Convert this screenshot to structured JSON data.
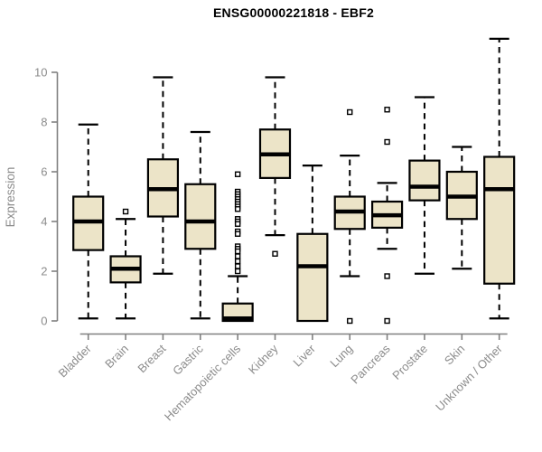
{
  "chart_data": {
    "type": "box",
    "title": "ENSG00000221818 - EBF2",
    "ylabel": "Expression",
    "xlabel": "",
    "ylim": [
      0,
      11.5
    ],
    "yticks": [
      0,
      2,
      4,
      6,
      8,
      10
    ],
    "grid": false,
    "legend": "none",
    "categories": [
      "Bladder",
      "Brain",
      "Breast",
      "Gastric",
      "Hematopoietic cells",
      "Kidney",
      "Liver",
      "Lung",
      "Pancreas",
      "Prostate",
      "Skin",
      "Unknown / Other"
    ],
    "series": [
      {
        "name": "Bladder",
        "whisker_low": 0.1,
        "q1": 2.85,
        "median": 4.0,
        "q3": 5.0,
        "whisker_high": 7.9,
        "outliers": []
      },
      {
        "name": "Brain",
        "whisker_low": 0.1,
        "q1": 1.55,
        "median": 2.1,
        "q3": 2.6,
        "whisker_high": 4.1,
        "outliers": [
          4.4
        ]
      },
      {
        "name": "Breast",
        "whisker_low": 1.9,
        "q1": 4.2,
        "median": 5.3,
        "q3": 6.5,
        "whisker_high": 9.8,
        "outliers": []
      },
      {
        "name": "Gastric",
        "whisker_low": 0.1,
        "q1": 2.9,
        "median": 4.0,
        "q3": 5.5,
        "whisker_high": 7.6,
        "outliers": []
      },
      {
        "name": "Hematopoietic cells",
        "whisker_low": 0.0,
        "q1": 0.0,
        "median": 0.1,
        "q3": 0.7,
        "whisker_high": 1.8,
        "outliers": [
          5.9,
          5.2,
          5.1,
          5.0,
          4.9,
          4.8,
          4.7,
          4.6,
          4.5,
          4.1,
          4.0,
          3.9,
          3.6,
          3.5,
          3.0,
          2.9,
          2.8,
          2.6,
          2.4,
          2.2,
          2.0
        ]
      },
      {
        "name": "Kidney",
        "whisker_low": 3.45,
        "q1": 5.75,
        "median": 6.7,
        "q3": 7.7,
        "whisker_high": 9.8,
        "outliers": [
          2.7
        ]
      },
      {
        "name": "Liver",
        "whisker_low": 0.0,
        "q1": 0.0,
        "median": 2.2,
        "q3": 3.5,
        "whisker_high": 6.25,
        "outliers": []
      },
      {
        "name": "Lung",
        "whisker_low": 1.8,
        "q1": 3.7,
        "median": 4.4,
        "q3": 5.0,
        "whisker_high": 6.65,
        "outliers": [
          8.4,
          0.0
        ]
      },
      {
        "name": "Pancreas",
        "whisker_low": 2.9,
        "q1": 3.75,
        "median": 4.25,
        "q3": 4.8,
        "whisker_high": 5.55,
        "outliers": [
          8.5,
          7.2,
          1.8,
          0.0
        ]
      },
      {
        "name": "Prostate",
        "whisker_low": 1.9,
        "q1": 4.85,
        "median": 5.4,
        "q3": 6.45,
        "whisker_high": 9.0,
        "outliers": []
      },
      {
        "name": "Skin",
        "whisker_low": 2.1,
        "q1": 4.1,
        "median": 5.0,
        "q3": 6.0,
        "whisker_high": 7.0,
        "outliers": []
      },
      {
        "name": "Unknown / Other",
        "whisker_low": 0.1,
        "q1": 1.5,
        "median": 5.3,
        "q3": 6.6,
        "whisker_high": 11.35,
        "outliers": []
      }
    ],
    "colors": {
      "box_fill": "#ece4c8",
      "box_border": "#000000",
      "median": "#000000",
      "whisker": "#000000",
      "axis_line": "#808080",
      "axis_text": "#8c8c8c",
      "title": "#000000",
      "background": "#ffffff"
    }
  }
}
